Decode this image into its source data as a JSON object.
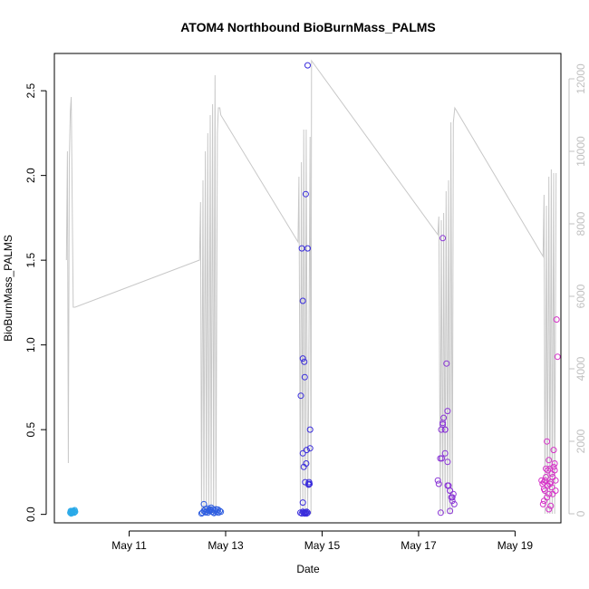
{
  "chart_data": {
    "type": "scatter",
    "title": "ATOM4 Northbound BioBurnMass_PALMS",
    "xlabel": "Date",
    "ylabel": "BioBurnMass_PALMS",
    "xlim": [
      9.45,
      19.95
    ],
    "ylim": [
      -0.05,
      2.72
    ],
    "y2lim": [
      -250,
      12700
    ],
    "x_ticks": [
      11,
      13,
      15,
      17,
      19
    ],
    "x_tick_labels": [
      "May 11",
      "May 13",
      "May 15",
      "May 17",
      "May 19"
    ],
    "y_ticks": [
      0.0,
      0.5,
      1.0,
      1.5,
      2.0,
      2.5
    ],
    "y_tick_labels": [
      "0.0",
      "0.5",
      "1.0",
      "1.5",
      "2.0",
      "2.5"
    ],
    "y2_ticks": [
      0,
      2000,
      4000,
      6000,
      8000,
      10000,
      12000
    ],
    "y2_tick_labels": [
      "0",
      "2000",
      "4000",
      "6000",
      "8000",
      "10000",
      "12000"
    ],
    "colors": {
      "day10": "#29a9e8",
      "day12": "#2f5ee0",
      "day14": "#3a2ddc",
      "day17": "#8a35d6",
      "day19": "#d632c8",
      "line": "#c8c8c8",
      "axis": "#000000",
      "right_axis": "#c0c0c0"
    },
    "scatter_groups": [
      {
        "color_key": "day10",
        "x": [
          9.78,
          9.79,
          9.8,
          9.81,
          9.82,
          9.83,
          9.84,
          9.85,
          9.86,
          9.87,
          9.88,
          9.8,
          9.84,
          9.86
        ],
        "y": [
          0.01,
          0.02,
          0.015,
          0.01,
          0.02,
          0.01,
          0.015,
          0.02,
          0.01,
          0.025,
          0.015,
          0.005,
          0.02,
          0.012
        ]
      },
      {
        "color_key": "day12",
        "x": [
          12.5,
          12.52,
          12.55,
          12.58,
          12.6,
          12.63,
          12.65,
          12.67,
          12.7,
          12.72,
          12.75,
          12.78,
          12.8,
          12.82,
          12.85,
          12.88,
          12.9,
          12.55,
          12.62,
          12.7,
          12.76,
          12.84,
          12.58,
          12.66,
          12.74
        ],
        "y": [
          0.005,
          0.01,
          0.02,
          0.03,
          0.015,
          0.01,
          0.02,
          0.03,
          0.025,
          0.015,
          0.01,
          0.02,
          0.03,
          0.015,
          0.01,
          0.02,
          0.015,
          0.06,
          0.035,
          0.04,
          0.008,
          0.028,
          0.012,
          0.022,
          0.03
        ]
      },
      {
        "color_key": "day14",
        "x": [
          14.55,
          14.58,
          14.6,
          14.62,
          14.64,
          14.66,
          14.68,
          14.7,
          14.6,
          14.62,
          14.65,
          14.68,
          14.6,
          14.64,
          14.6,
          14.63,
          14.67,
          14.72,
          14.73,
          14.75,
          14.6,
          14.7,
          14.75,
          14.58,
          14.66,
          14.7,
          14.72,
          14.74,
          14.56,
          14.62,
          14.68,
          14.64
        ],
        "y": [
          0.01,
          0.005,
          0.015,
          0.01,
          0.005,
          0.01,
          0.015,
          0.01,
          0.07,
          0.28,
          0.19,
          0.38,
          0.36,
          0.81,
          0.92,
          0.9,
          0.3,
          0.18,
          0.19,
          0.39,
          1.26,
          1.57,
          0.5,
          1.57,
          1.89,
          2.65,
          0.175,
          0.18,
          0.7,
          0.01,
          0.005,
          0.01
        ]
      },
      {
        "color_key": "day17",
        "x": [
          17.4,
          17.42,
          17.45,
          17.47,
          17.5,
          17.52,
          17.55,
          17.58,
          17.6,
          17.62,
          17.65,
          17.68,
          17.7,
          17.72,
          17.74,
          17.46,
          17.5,
          17.55,
          17.6,
          17.65,
          17.7,
          17.5,
          17.55,
          17.6,
          17.65,
          17.48
        ],
        "y": [
          0.2,
          0.18,
          0.33,
          0.5,
          0.53,
          0.57,
          0.5,
          0.89,
          0.61,
          0.17,
          0.14,
          0.1,
          0.08,
          0.12,
          0.06,
          0.01,
          0.54,
          0.5,
          0.31,
          0.02,
          0.1,
          1.63,
          0.36,
          0.17,
          0.14,
          0.33
        ]
      },
      {
        "color_key": "day19",
        "x": [
          19.55,
          19.57,
          19.6,
          19.62,
          19.64,
          19.66,
          19.68,
          19.7,
          19.72,
          19.74,
          19.76,
          19.78,
          19.8,
          19.82,
          19.84,
          19.58,
          19.62,
          19.66,
          19.7,
          19.74,
          19.78,
          19.82,
          19.6,
          19.68,
          19.76,
          19.84,
          19.64,
          19.72,
          19.8,
          19.86,
          19.88,
          19.6,
          19.7
        ],
        "y": [
          0.2,
          0.18,
          0.15,
          0.2,
          0.27,
          0.43,
          0.17,
          0.32,
          0.27,
          0.19,
          0.24,
          0.22,
          0.38,
          0.26,
          0.2,
          0.06,
          0.14,
          0.1,
          0.03,
          0.05,
          0.12,
          0.3,
          0.19,
          0.26,
          0.16,
          0.14,
          0.22,
          0.18,
          0.28,
          1.15,
          0.93,
          0.08,
          0.12
        ]
      }
    ],
    "line_series": {
      "axis": "right",
      "x": [
        9.7,
        9.72,
        9.74,
        9.76,
        9.78,
        9.8,
        9.84,
        9.86,
        9.88,
        12.46,
        12.48,
        12.5,
        12.53,
        12.55,
        12.58,
        12.6,
        12.63,
        12.65,
        12.68,
        12.7,
        12.73,
        12.75,
        12.78,
        12.8,
        12.83,
        12.85,
        12.88,
        12.9,
        14.5,
        14.52,
        14.55,
        14.57,
        14.6,
        14.62,
        14.65,
        14.67,
        14.7,
        14.72,
        14.75,
        14.77,
        14.78,
        17.4,
        17.42,
        17.45,
        17.47,
        17.5,
        17.52,
        17.55,
        17.57,
        17.6,
        17.62,
        17.65,
        17.67,
        17.7,
        17.72,
        17.75,
        19.58,
        19.6,
        19.62,
        19.65,
        19.67,
        19.7,
        19.72,
        19.75,
        19.77,
        19.8,
        19.82,
        19.85
      ],
      "y": [
        7000,
        10000,
        1400,
        9800,
        11100,
        11500,
        5700,
        5700,
        5700,
        7000,
        8600,
        0,
        9200,
        0,
        10000,
        0,
        10500,
        0,
        11000,
        0,
        11300,
        0,
        12100,
        0,
        10500,
        11200,
        11200,
        11000,
        7500,
        9300,
        0,
        9700,
        0,
        10600,
        0,
        10600,
        0,
        3200,
        10400,
        0,
        12500,
        7700,
        8200,
        0,
        8100,
        0,
        8300,
        0,
        8900,
        0,
        9200,
        0,
        10800,
        0,
        10800,
        11200,
        7100,
        8800,
        0,
        8500,
        0,
        9300,
        0,
        9500,
        0,
        9400,
        0,
        9400
      ]
    }
  }
}
